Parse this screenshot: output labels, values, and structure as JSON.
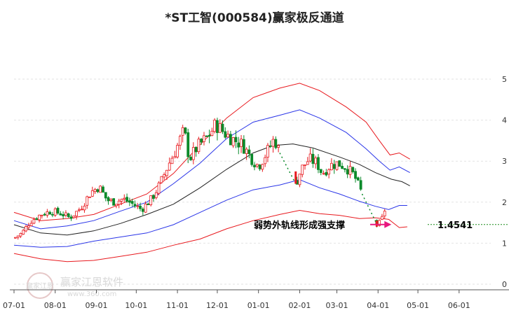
{
  "chart_data": {
    "type": "candlestick-channel",
    "title": "*ST工智(000584)赢家极反通道",
    "xlabel": "",
    "ylabel": "",
    "ylim": [
      0,
      5
    ],
    "y_ticks": [
      "0",
      "1",
      "2",
      "3",
      "4",
      "5"
    ],
    "x_ticks": [
      {
        "label": "07-01",
        "day": 0
      },
      {
        "label": "08-01",
        "day": 31
      },
      {
        "label": "09-01",
        "day": 62
      },
      {
        "label": "10-01",
        "day": 92
      },
      {
        "label": "11-01",
        "day": 123
      },
      {
        "label": "12-01",
        "day": 153
      },
      {
        "label": "01-01",
        "day": 184
      },
      {
        "label": "02-01",
        "day": 215
      },
      {
        "label": "03-01",
        "day": 243
      },
      {
        "label": "04-01",
        "day": 274
      },
      {
        "label": "05-01",
        "day": 304
      },
      {
        "label": "06-01",
        "day": 335
      }
    ],
    "close_anchors": [
      [
        0,
        1.12
      ],
      [
        6,
        1.25
      ],
      [
        12,
        1.52
      ],
      [
        20,
        1.7
      ],
      [
        28,
        1.78
      ],
      [
        36,
        1.72
      ],
      [
        42,
        1.62
      ],
      [
        50,
        1.85
      ],
      [
        58,
        2.25
      ],
      [
        64,
        2.38
      ],
      [
        70,
        2.05
      ],
      [
        76,
        2.0
      ],
      [
        82,
        2.08
      ],
      [
        88,
        1.98
      ],
      [
        96,
        1.82
      ],
      [
        104,
        2.1
      ],
      [
        110,
        2.45
      ],
      [
        116,
        2.9
      ],
      [
        122,
        3.3
      ],
      [
        128,
        3.75
      ],
      [
        132,
        3.05
      ],
      [
        138,
        3.35
      ],
      [
        146,
        3.6
      ],
      [
        152,
        3.9
      ],
      [
        158,
        3.7
      ],
      [
        164,
        3.55
      ],
      [
        172,
        3.4
      ],
      [
        178,
        3.1
      ],
      [
        184,
        2.88
      ],
      [
        190,
        3.2
      ],
      [
        196,
        3.55
      ],
      [
        200,
        3.2
      ],
      [
        206,
        2.9
      ],
      [
        212,
        2.45
      ],
      [
        216,
        2.8
      ],
      [
        222,
        3.05
      ],
      [
        228,
        2.95
      ],
      [
        232,
        2.7
      ],
      [
        238,
        2.9
      ],
      [
        244,
        2.95
      ],
      [
        250,
        2.85
      ],
      [
        256,
        2.65
      ],
      [
        262,
        2.2
      ],
      [
        266,
        2.0
      ],
      [
        270,
        1.62
      ],
      [
        273,
        1.47
      ],
      [
        276,
        1.5
      ],
      [
        278,
        1.7
      ],
      [
        280,
        1.92
      ]
    ],
    "dotted_drops": [
      [
        200,
        3.2,
        212,
        2.45
      ],
      [
        262,
        2.2,
        273,
        1.47
      ]
    ],
    "channel": {
      "upper_red": [
        [
          0,
          1.75
        ],
        [
          20,
          1.55
        ],
        [
          40,
          1.6
        ],
        [
          60,
          1.7
        ],
        [
          80,
          1.95
        ],
        [
          100,
          2.2
        ],
        [
          120,
          2.7
        ],
        [
          140,
          3.4
        ],
        [
          160,
          4.05
        ],
        [
          180,
          4.55
        ],
        [
          200,
          4.78
        ],
        [
          215,
          4.9
        ],
        [
          230,
          4.72
        ],
        [
          250,
          4.32
        ],
        [
          265,
          3.95
        ],
        [
          275,
          3.5
        ],
        [
          283,
          3.15
        ],
        [
          290,
          3.2
        ],
        [
          298,
          3.05
        ]
      ],
      "upper_blue": [
        [
          0,
          1.55
        ],
        [
          20,
          1.35
        ],
        [
          40,
          1.42
        ],
        [
          60,
          1.55
        ],
        [
          80,
          1.78
        ],
        [
          100,
          2.0
        ],
        [
          120,
          2.45
        ],
        [
          140,
          2.95
        ],
        [
          160,
          3.55
        ],
        [
          180,
          3.95
        ],
        [
          200,
          4.12
        ],
        [
          215,
          4.25
        ],
        [
          230,
          4.05
        ],
        [
          250,
          3.7
        ],
        [
          265,
          3.3
        ],
        [
          275,
          3.0
        ],
        [
          283,
          2.78
        ],
        [
          290,
          2.86
        ],
        [
          298,
          2.72
        ]
      ],
      "middle_black": [
        [
          0,
          1.45
        ],
        [
          20,
          1.25
        ],
        [
          40,
          1.2
        ],
        [
          60,
          1.3
        ],
        [
          80,
          1.48
        ],
        [
          100,
          1.7
        ],
        [
          120,
          1.95
        ],
        [
          140,
          2.35
        ],
        [
          160,
          2.8
        ],
        [
          180,
          3.2
        ],
        [
          195,
          3.38
        ],
        [
          210,
          3.42
        ],
        [
          225,
          3.32
        ],
        [
          245,
          3.1
        ],
        [
          260,
          2.92
        ],
        [
          272,
          2.72
        ],
        [
          284,
          2.56
        ],
        [
          292,
          2.5
        ],
        [
          298,
          2.4
        ]
      ],
      "lower_blue": [
        [
          0,
          0.95
        ],
        [
          20,
          0.9
        ],
        [
          40,
          0.92
        ],
        [
          60,
          1.05
        ],
        [
          80,
          1.15
        ],
        [
          100,
          1.25
        ],
        [
          120,
          1.45
        ],
        [
          140,
          1.75
        ],
        [
          160,
          2.05
        ],
        [
          180,
          2.3
        ],
        [
          200,
          2.42
        ],
        [
          215,
          2.55
        ],
        [
          230,
          2.35
        ],
        [
          245,
          2.2
        ],
        [
          260,
          2.02
        ],
        [
          272,
          1.9
        ],
        [
          282,
          1.82
        ],
        [
          290,
          1.92
        ],
        [
          296,
          1.92
        ]
      ],
      "lower_red": [
        [
          0,
          0.75
        ],
        [
          20,
          0.62
        ],
        [
          40,
          0.55
        ],
        [
          60,
          0.58
        ],
        [
          80,
          0.68
        ],
        [
          100,
          0.78
        ],
        [
          120,
          0.95
        ],
        [
          140,
          1.1
        ],
        [
          160,
          1.35
        ],
        [
          180,
          1.55
        ],
        [
          200,
          1.7
        ],
        [
          215,
          1.8
        ],
        [
          230,
          1.72
        ],
        [
          245,
          1.68
        ],
        [
          260,
          1.6
        ],
        [
          272,
          1.62
        ],
        [
          282,
          1.58
        ],
        [
          290,
          1.38
        ],
        [
          296,
          1.4
        ]
      ]
    },
    "annotation": {
      "text": "弱势外轨线形成强支撑",
      "value_label": "1.4541",
      "value": 1.4541,
      "arrow_to_day": 283
    }
  },
  "watermark": {
    "name": "赢家江恩软件",
    "url": "www.360.com",
    "logo": "赢家江恩"
  }
}
